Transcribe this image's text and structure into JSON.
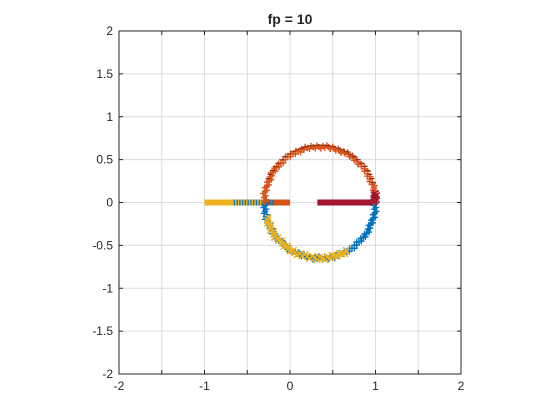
{
  "chart_data": {
    "type": "scatter",
    "title": "fp = 10",
    "xlabel": "",
    "ylabel": "",
    "xlim": [
      -2,
      2
    ],
    "ylim": [
      -2,
      2
    ],
    "xticks": [
      -2,
      -1.5,
      -1,
      -0.5,
      0,
      0.5,
      1,
      1.5,
      2
    ],
    "yticks": [
      -2,
      -1.5,
      -1,
      -0.5,
      0,
      0.5,
      1,
      1.5,
      2
    ],
    "xtick_labels": [
      "-2",
      "",
      "-1",
      "",
      "0",
      "",
      "1",
      "",
      "2"
    ],
    "ytick_labels": [
      "-2",
      "-1.5",
      "-1",
      "-0.5",
      "0",
      "0.5",
      "1",
      "1.5",
      "2"
    ],
    "grid": true,
    "circle": {
      "center": [
        0.35,
        0
      ],
      "radius": 0.65
    },
    "series": [
      {
        "color": "#0072BD",
        "marker": "+",
        "arc": [
          180,
          360
        ],
        "points": 90
      },
      {
        "color": "#EDB120",
        "marker": "x",
        "arc": [
          195,
          300
        ],
        "points": 40
      },
      {
        "color": "#D95319",
        "marker": "+",
        "arc": [
          0,
          180
        ],
        "points": 90
      },
      {
        "color": "#A2142F",
        "marker": "x",
        "arc": [
          0,
          10
        ],
        "points": 8
      }
    ],
    "segments": [
      {
        "color": "#EDB120",
        "x": [
          -1,
          -0.3
        ],
        "y": 0
      },
      {
        "color": "#D95319",
        "x": [
          -0.3,
          0
        ],
        "y": 0
      },
      {
        "color": "#A2142F",
        "x": [
          0.32,
          0.97
        ],
        "y": 0
      },
      {
        "color": "#0072BD",
        "x": [
          -0.65,
          -0.2
        ],
        "y": 0,
        "style": "ticks"
      }
    ]
  }
}
